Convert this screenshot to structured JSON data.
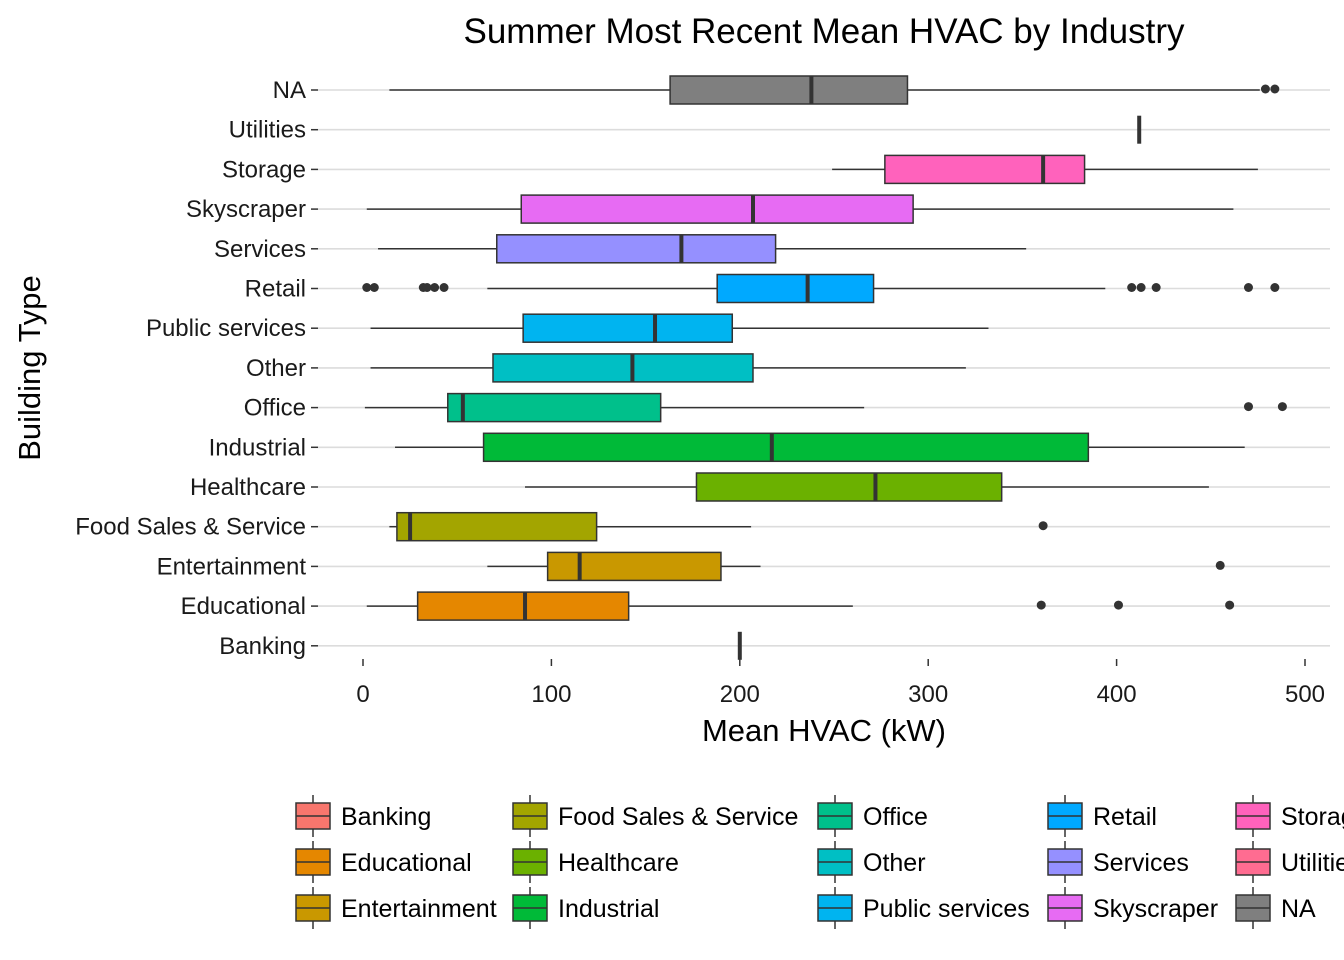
{
  "chart_data": {
    "type": "boxplot",
    "orientation": "horizontal",
    "title": "Summer Most Recent Mean HVAC by Industry",
    "xlabel": "Mean HVAC (kW)",
    "ylabel": "Building Type",
    "xlim": [
      -25,
      510
    ],
    "x_ticks": [
      0,
      100,
      200,
      300,
      400,
      500
    ],
    "grid": "horizontal",
    "legend_position": "bottom",
    "categories": [
      {
        "name": "Banking",
        "color": "#F8766D",
        "min": 200,
        "q1": 200,
        "median": 200,
        "q3": 200,
        "max": 200,
        "outliers": []
      },
      {
        "name": "Educational",
        "color": "#E58700",
        "min": 2,
        "q1": 29,
        "median": 86,
        "q3": 141,
        "max": 260,
        "outliers": [
          360,
          401,
          460
        ]
      },
      {
        "name": "Entertainment",
        "color": "#C99800",
        "min": 66,
        "q1": 98,
        "median": 115,
        "q3": 190,
        "max": 211,
        "outliers": [
          455
        ]
      },
      {
        "name": "Food Sales & Service",
        "color": "#A3A500",
        "min": 14,
        "q1": 18,
        "median": 25,
        "q3": 124,
        "max": 206,
        "outliers": [
          361
        ]
      },
      {
        "name": "Healthcare",
        "color": "#6BB100",
        "min": 86,
        "q1": 177,
        "median": 272,
        "q3": 339,
        "max": 449,
        "outliers": []
      },
      {
        "name": "Industrial",
        "color": "#00BA38",
        "min": 17,
        "q1": 64,
        "median": 217,
        "q3": 385,
        "max": 468,
        "outliers": []
      },
      {
        "name": "Office",
        "color": "#00C08B",
        "min": 1,
        "q1": 45,
        "median": 53,
        "q3": 158,
        "max": 266,
        "outliers": [
          470,
          488
        ]
      },
      {
        "name": "Other",
        "color": "#00BFC4",
        "min": 4,
        "q1": 69,
        "median": 143,
        "q3": 207,
        "max": 320,
        "outliers": []
      },
      {
        "name": "Public services",
        "color": "#00B4F0",
        "min": 4,
        "q1": 85,
        "median": 155,
        "q3": 196,
        "max": 332,
        "outliers": []
      },
      {
        "name": "Retail",
        "color": "#00A9FF",
        "min": 66,
        "q1": 188,
        "median": 236,
        "q3": 271,
        "max": 394,
        "outliers": [
          2,
          6,
          32,
          34,
          38,
          43,
          408,
          413,
          421,
          470,
          484
        ]
      },
      {
        "name": "Services",
        "color": "#9590FF",
        "min": 8,
        "q1": 71,
        "median": 169,
        "q3": 219,
        "max": 352,
        "outliers": []
      },
      {
        "name": "Skyscraper",
        "color": "#E76BF3",
        "min": 2,
        "q1": 84,
        "median": 207,
        "q3": 292,
        "max": 462,
        "outliers": []
      },
      {
        "name": "Storage",
        "color": "#FF62BC",
        "min": 249,
        "q1": 277,
        "median": 361,
        "q3": 383,
        "max": 475,
        "outliers": []
      },
      {
        "name": "Utilities",
        "color": "#FF6C91",
        "min": 412,
        "q1": 412,
        "median": 412,
        "q3": 412,
        "max": 412,
        "outliers": []
      },
      {
        "name": "NA",
        "color": "#7F7F7F",
        "min": 14,
        "q1": 163,
        "median": 238,
        "q3": 289,
        "max": 476,
        "outliers": [
          479,
          484
        ]
      }
    ],
    "legend": {
      "columns": [
        [
          "Banking",
          "Educational",
          "Entertainment"
        ],
        [
          "Food Sales & Service",
          "Healthcare",
          "Industrial"
        ],
        [
          "Office",
          "Other",
          "Public services"
        ],
        [
          "Retail",
          "Services",
          "Skyscraper"
        ],
        [
          "Storage",
          "Utilities",
          "NA"
        ]
      ]
    }
  }
}
